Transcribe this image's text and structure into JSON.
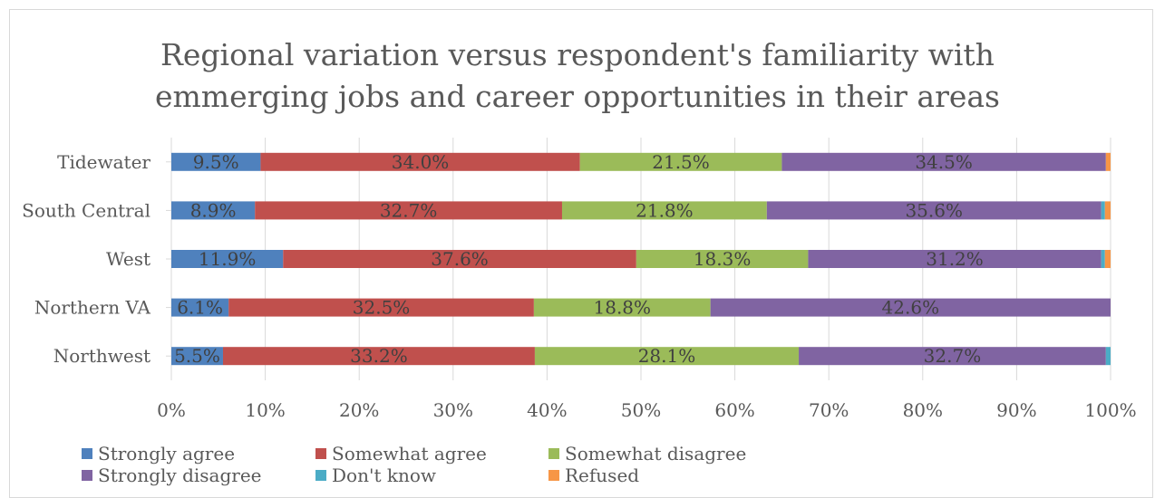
{
  "colors": {
    "strongly_agree": "#4f81bd",
    "somewhat_agree": "#c0504d",
    "somewhat_disagree": "#9bbb59",
    "strongly_disagree": "#8064a2",
    "dont_know": "#4bacc6",
    "refused": "#f79646"
  },
  "chart_data": {
    "type": "bar",
    "orientation": "horizontal",
    "stacked": "percent",
    "title": "Regional variation versus  respondent's familiarity with emmerging jobs and career opportunities in their areas",
    "title_lines": [
      "Regional variation versus  respondent's familiarity with",
      "emmerging jobs and career opportunities in their areas"
    ],
    "categories": [
      "Tidewater",
      "South Central",
      "West",
      "Northern VA",
      "Northwest"
    ],
    "x_ticks": [
      "0%",
      "10%",
      "20%",
      "30%",
      "40%",
      "50%",
      "60%",
      "70%",
      "80%",
      "90%",
      "100%"
    ],
    "xlim": [
      0,
      100
    ],
    "grid": true,
    "legend_position": "bottom",
    "series": [
      {
        "name": "Strongly agree",
        "color": "#4f81bd",
        "values": [
          9.5,
          8.9,
          11.9,
          6.1,
          5.5
        ],
        "labels": [
          "9.5%",
          "8.9%",
          "11.9%",
          "6.1%",
          "5.5%"
        ]
      },
      {
        "name": "Somewhat agree",
        "color": "#c0504d",
        "values": [
          34.0,
          32.7,
          37.6,
          32.5,
          33.2
        ],
        "labels": [
          "34.0%",
          "32.7%",
          "37.6%",
          "32.5%",
          "33.2%"
        ]
      },
      {
        "name": "Somewhat disagree",
        "color": "#9bbb59",
        "values": [
          21.5,
          21.8,
          18.3,
          18.8,
          28.1
        ],
        "labels": [
          "21.5%",
          "21.8%",
          "18.3%",
          "18.8%",
          "28.1%"
        ]
      },
      {
        "name": "Strongly disagree",
        "color": "#8064a2",
        "values": [
          34.5,
          35.6,
          31.2,
          42.6,
          32.7
        ],
        "labels": [
          "34.5%",
          "35.6%",
          "31.2%",
          "42.6%",
          "32.7%"
        ]
      },
      {
        "name": "Don't know",
        "color": "#4bacc6",
        "values": [
          0.0,
          0.4,
          0.4,
          0.0,
          0.5
        ],
        "labels": [
          "",
          "",
          "",
          "",
          ""
        ]
      },
      {
        "name": "Refused",
        "color": "#f79646",
        "values": [
          0.5,
          0.6,
          0.6,
          0.0,
          0.0
        ],
        "labels": [
          "",
          "",
          "",
          "",
          ""
        ]
      }
    ]
  }
}
